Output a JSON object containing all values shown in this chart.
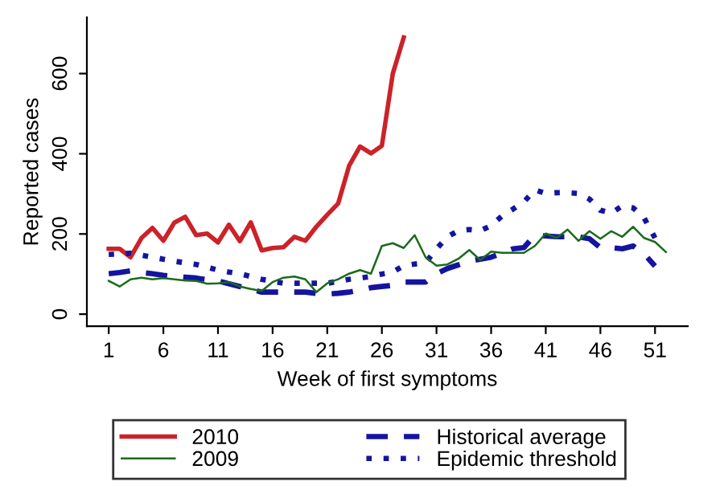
{
  "chart_data": {
    "type": "line",
    "xlabel": "Week of first symptoms",
    "ylabel": "Reported cases",
    "xlim": [
      -1,
      54
    ],
    "xticks": [
      1,
      6,
      11,
      16,
      21,
      26,
      31,
      36,
      41,
      46,
      51
    ],
    "ylim": [
      -30,
      740
    ],
    "yticks": [
      0,
      200,
      400,
      600
    ],
    "grid": false,
    "legend": "bottom",
    "series": [
      {
        "name": "2010",
        "color": "#cc2229",
        "line_style": "solid",
        "x": [
          1,
          2,
          3,
          4,
          5,
          6,
          7,
          8,
          9,
          10,
          11,
          12,
          13,
          14,
          15,
          16,
          17,
          18,
          19,
          20,
          21,
          22,
          23,
          24,
          25,
          26,
          27,
          28
        ],
        "values": [
          163,
          163,
          142,
          190,
          215,
          183,
          228,
          243,
          197,
          201,
          179,
          223,
          182,
          229,
          159,
          165,
          167,
          193,
          183,
          218,
          248,
          276,
          370,
          418,
          401,
          420,
          600,
          690
        ]
      },
      {
        "name": "2009",
        "color": "#1a6b1a",
        "line_style": "solid",
        "x": [
          1,
          2,
          3,
          4,
          5,
          6,
          7,
          8,
          9,
          10,
          11,
          12,
          13,
          14,
          15,
          16,
          17,
          18,
          19,
          20,
          21,
          22,
          23,
          24,
          25,
          26,
          27,
          28,
          29,
          30,
          31,
          32,
          33,
          34,
          35,
          36,
          37,
          38,
          39,
          40,
          41,
          42,
          43,
          44,
          45,
          46,
          47,
          48,
          49,
          50,
          51,
          52
        ],
        "values": [
          83,
          69,
          87,
          91,
          87,
          90,
          87,
          84,
          83,
          76,
          77,
          80,
          69,
          63,
          58,
          80,
          91,
          94,
          87,
          55,
          77,
          87,
          101,
          110,
          101,
          170,
          177,
          165,
          197,
          142,
          121,
          124,
          138,
          160,
          135,
          156,
          153,
          153,
          153,
          170,
          201,
          190,
          211,
          183,
          207,
          188,
          207,
          193,
          218,
          190,
          180,
          155
        ]
      },
      {
        "name": "Historical average",
        "color": "#1414a0",
        "line_style": "dashed",
        "x": [
          1,
          2,
          3,
          4,
          5,
          6,
          7,
          8,
          9,
          10,
          11,
          12,
          13,
          14,
          15,
          16,
          17,
          18,
          19,
          20,
          21,
          22,
          23,
          24,
          25,
          26,
          27,
          28,
          29,
          30,
          31,
          32,
          33,
          34,
          35,
          36,
          37,
          38,
          39,
          40,
          41,
          42,
          43,
          44,
          45,
          46,
          47,
          48,
          49,
          50,
          51
        ],
        "values": [
          101,
          104,
          108,
          104,
          101,
          97,
          94,
          92,
          90,
          86,
          83,
          76,
          69,
          62,
          55,
          55,
          55,
          55,
          55,
          52,
          50,
          52,
          55,
          60,
          66,
          69,
          72,
          80,
          80,
          80,
          101,
          114,
          123,
          132,
          137,
          142,
          152,
          163,
          166,
          197,
          195,
          193,
          193,
          193,
          188,
          166,
          166,
          163,
          170,
          150,
          120
        ]
      },
      {
        "name": "Epidemic threshold",
        "color": "#1414a0",
        "line_style": "dotted",
        "x": [
          1,
          2,
          3,
          4,
          5,
          6,
          7,
          8,
          9,
          10,
          11,
          12,
          13,
          14,
          15,
          16,
          17,
          18,
          19,
          20,
          21,
          22,
          23,
          24,
          25,
          26,
          27,
          28,
          29,
          30,
          31,
          32,
          33,
          34,
          35,
          36,
          37,
          38,
          39,
          40,
          41,
          42,
          43,
          44,
          45,
          46,
          47,
          48,
          49,
          50,
          51
        ],
        "values": [
          149,
          150,
          152,
          147,
          142,
          137,
          132,
          128,
          124,
          117,
          110,
          105,
          101,
          94,
          87,
          82,
          77,
          77,
          77,
          77,
          77,
          82,
          87,
          90,
          94,
          100,
          105,
          121,
          125,
          128,
          163,
          193,
          208,
          211,
          208,
          221,
          245,
          262,
          280,
          310,
          301,
          303,
          303,
          301,
          287,
          259,
          252,
          270,
          265,
          240,
          190
        ]
      }
    ]
  }
}
